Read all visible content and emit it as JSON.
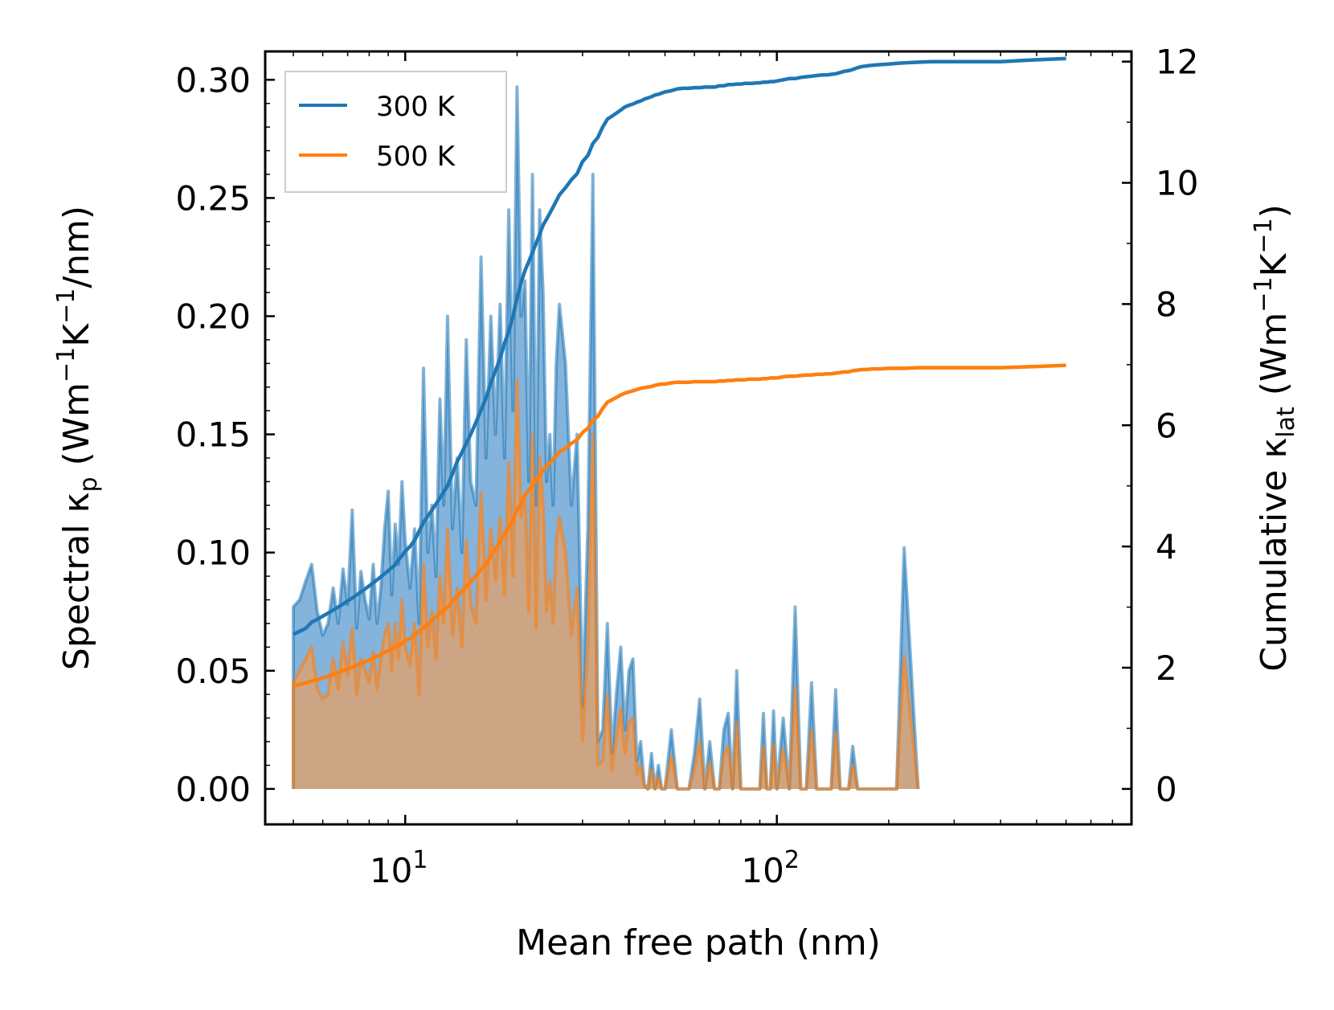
{
  "chart_data": {
    "type": "area",
    "xscale": "log",
    "xlabel": "Mean free path (nm)",
    "ylabel": "Spectral κp (Wm⁻¹K⁻¹/nm)",
    "ylabel_parts": [
      "Spectral κ",
      "p",
      " (Wm",
      "−1",
      "K",
      "−1",
      "/nm)"
    ],
    "ylabel2": "Cumulative κlat (Wm⁻¹K⁻¹)",
    "ylabel2_parts": [
      "Cumulative κ",
      "lat",
      " (Wm",
      "−1",
      "K",
      "−1",
      ")"
    ],
    "xlim": [
      4.2,
      900
    ],
    "ylim": [
      -0.015,
      0.312
    ],
    "y2lim": [
      -0.585,
      12.168
    ],
    "xticks": [
      {
        "value": 10,
        "base": "10",
        "exp": "1"
      },
      {
        "value": 100,
        "base": "10",
        "exp": "2"
      }
    ],
    "yticks": [
      0.0,
      0.05,
      0.1,
      0.15,
      0.2,
      0.25,
      0.3
    ],
    "ytick_labels": [
      "0.00",
      "0.05",
      "0.10",
      "0.15",
      "0.20",
      "0.25",
      "0.30"
    ],
    "y2ticks": [
      0,
      2,
      4,
      6,
      8,
      10,
      12
    ],
    "y2tick_labels": [
      "0",
      "2",
      "4",
      "6",
      "8",
      "10",
      "12"
    ],
    "legend": {
      "position": "upper-left",
      "entries": [
        "300 K",
        "500 K"
      ]
    },
    "colors": {
      "300 K": "#1f77b4",
      "500 K": "#ff7f0e",
      "fill_300": "#6fa6d6",
      "fill_500": "#d4a37a"
    },
    "spectral_x": [
      5.0,
      5.2,
      5.4,
      5.6,
      5.8,
      6.0,
      6.2,
      6.4,
      6.6,
      6.8,
      7.0,
      7.2,
      7.4,
      7.6,
      7.8,
      8.0,
      8.2,
      8.4,
      8.6,
      8.8,
      9.0,
      9.2,
      9.4,
      9.6,
      9.8,
      10.0,
      10.3,
      10.6,
      10.9,
      11.2,
      11.5,
      11.8,
      12.1,
      12.4,
      12.7,
      13.0,
      13.4,
      13.8,
      14.2,
      14.6,
      15.0,
      15.5,
      16.0,
      16.5,
      17.0,
      17.5,
      18.0,
      18.5,
      19.0,
      19.5,
      20.0,
      20.5,
      21.0,
      21.5,
      22.0,
      22.5,
      23.0,
      23.5,
      24.0,
      24.5,
      25.0,
      25.5,
      26.0,
      27.0,
      28.0,
      29.0,
      30.0,
      31.0,
      32.0,
      33.0,
      34.0,
      35.0,
      36.0,
      37.0,
      38.0,
      39.0,
      40.0,
      41.0,
      42.0,
      43.0,
      44.0,
      45.0,
      46.0,
      47.0,
      48.0,
      49.0,
      50.0,
      52.0,
      54.0,
      56.0,
      58.0,
      60.0,
      62.0,
      64.0,
      66.0,
      68.0,
      70.0,
      72.0,
      74.0,
      76.0,
      78.0,
      80.0,
      82.0,
      84.0,
      86.0,
      88.0,
      90.0,
      92.0,
      94.0,
      96.0,
      98.0,
      100.0,
      104.0,
      108.0,
      112.0,
      116.0,
      120.0,
      124.0,
      128.0,
      132.0,
      136.0,
      140.0,
      144.0,
      148.0,
      152.0,
      156.0,
      160.0,
      165.0,
      170.0,
      175.0,
      180.0,
      190.0,
      200.0,
      210.0,
      220.0,
      240.0,
      260.0,
      280.0,
      300.0,
      400.0,
      500.0,
      600.0,
      700.0,
      720.0,
      740.0,
      760.0
    ],
    "series": [
      {
        "name": "300 K",
        "spectral": [
          0.077,
          0.08,
          0.088,
          0.095,
          0.075,
          0.065,
          0.07,
          0.085,
          0.07,
          0.093,
          0.078,
          0.118,
          0.068,
          0.092,
          0.08,
          0.072,
          0.095,
          0.07,
          0.085,
          0.11,
          0.126,
          0.082,
          0.112,
          0.095,
          0.13,
          0.105,
          0.085,
          0.11,
          0.07,
          0.178,
          0.1,
          0.12,
          0.09,
          0.165,
          0.12,
          0.2,
          0.11,
          0.14,
          0.1,
          0.19,
          0.13,
          0.12,
          0.225,
          0.14,
          0.2,
          0.15,
          0.205,
          0.14,
          0.245,
          0.16,
          0.297,
          0.2,
          0.215,
          0.13,
          0.26,
          0.12,
          0.245,
          0.21,
          0.13,
          0.15,
          0.12,
          0.18,
          0.205,
          0.18,
          0.12,
          0.15,
          0.035,
          0.11,
          0.26,
          0.02,
          0.025,
          0.07,
          0.015,
          0.04,
          0.06,
          0.025,
          0.05,
          0.055,
          0.012,
          0.02,
          0.002,
          0.0,
          0.015,
          0.0,
          0.01,
          0.0,
          0.0,
          0.025,
          0.0,
          0.0,
          0.0,
          0.015,
          0.038,
          0.0,
          0.02,
          0.0,
          0.0,
          0.025,
          0.032,
          0.0,
          0.05,
          0.0,
          0.0,
          0.0,
          0.0,
          0.0,
          0.0,
          0.032,
          0.0,
          0.0,
          0.033,
          0.0,
          0.03,
          0.0,
          0.077,
          0.0,
          0.0,
          0.045,
          0.0,
          0.0,
          0.0,
          0.0,
          0.042,
          0.0,
          0.0,
          0.0,
          0.018,
          0.0,
          0.0,
          0.0,
          0.0,
          0.0,
          0.0,
          0.0,
          0.102,
          0.0
        ],
        "cumulative": [
          2.55,
          2.6,
          2.65,
          2.75,
          2.8,
          2.85,
          2.9,
          2.95,
          3.0,
          3.05,
          3.1,
          3.15,
          3.2,
          3.25,
          3.3,
          3.35,
          3.4,
          3.45,
          3.5,
          3.55,
          3.6,
          3.65,
          3.7,
          3.78,
          3.85,
          3.92,
          4.0,
          4.1,
          4.25,
          4.4,
          4.5,
          4.6,
          4.7,
          4.8,
          4.9,
          5.0,
          5.2,
          5.4,
          5.55,
          5.7,
          5.85,
          6.05,
          6.25,
          6.45,
          6.7,
          6.9,
          7.1,
          7.35,
          7.55,
          7.8,
          8.1,
          8.35,
          8.55,
          8.7,
          8.85,
          9.0,
          9.15,
          9.3,
          9.4,
          9.5,
          9.6,
          9.7,
          9.8,
          9.92,
          10.05,
          10.15,
          10.35,
          10.45,
          10.65,
          10.75,
          10.92,
          11.05,
          11.1,
          11.15,
          11.2,
          11.25,
          11.28,
          11.3,
          11.33,
          11.35,
          11.38,
          11.4,
          11.42,
          11.45,
          11.46,
          11.48,
          11.5,
          11.52,
          11.55,
          11.56,
          11.56,
          11.57,
          11.57,
          11.58,
          11.58,
          11.58,
          11.6,
          11.6,
          11.62,
          11.62,
          11.63,
          11.63,
          11.64,
          11.64,
          11.64,
          11.65,
          11.65,
          11.66,
          11.66,
          11.67,
          11.67,
          11.68,
          11.7,
          11.72,
          11.72,
          11.74,
          11.75,
          11.76,
          11.77,
          11.78,
          11.78,
          11.79,
          11.8,
          11.82,
          11.84,
          11.85,
          11.87,
          11.9,
          11.92,
          11.93,
          11.94,
          11.95,
          11.96,
          11.97,
          11.98,
          11.99,
          12.0,
          12.0,
          12.0,
          12.0,
          12.03,
          12.05
        ]
      },
      {
        "name": "500 K",
        "spectral": [
          0.045,
          0.05,
          0.055,
          0.06,
          0.042,
          0.038,
          0.04,
          0.055,
          0.042,
          0.062,
          0.048,
          0.068,
          0.04,
          0.055,
          0.05,
          0.045,
          0.058,
          0.042,
          0.055,
          0.065,
          0.07,
          0.05,
          0.07,
          0.055,
          0.08,
          0.06,
          0.052,
          0.07,
          0.04,
          0.095,
          0.06,
          0.075,
          0.055,
          0.09,
          0.07,
          0.11,
          0.065,
          0.085,
          0.06,
          0.105,
          0.078,
          0.07,
          0.125,
          0.08,
          0.11,
          0.088,
          0.115,
          0.082,
          0.138,
          0.09,
          0.173,
          0.115,
          0.125,
          0.075,
          0.15,
          0.068,
          0.14,
          0.12,
          0.075,
          0.088,
          0.07,
          0.104,
          0.115,
          0.1,
          0.065,
          0.085,
          0.02,
          0.06,
          0.15,
          0.01,
          0.012,
          0.04,
          0.008,
          0.022,
          0.034,
          0.015,
          0.028,
          0.03,
          0.006,
          0.01,
          0.001,
          0.0,
          0.008,
          0.0,
          0.005,
          0.0,
          0.0,
          0.014,
          0.0,
          0.0,
          0.0,
          0.008,
          0.02,
          0.0,
          0.011,
          0.0,
          0.0,
          0.014,
          0.018,
          0.0,
          0.028,
          0.0,
          0.0,
          0.0,
          0.0,
          0.0,
          0.0,
          0.018,
          0.0,
          0.0,
          0.019,
          0.0,
          0.017,
          0.0,
          0.043,
          0.0,
          0.0,
          0.025,
          0.0,
          0.0,
          0.0,
          0.0,
          0.024,
          0.0,
          0.0,
          0.0,
          0.01,
          0.0,
          0.0,
          0.0,
          0.0,
          0.0,
          0.0,
          0.0,
          0.056,
          0.0
        ],
        "cumulative": [
          1.7,
          1.72,
          1.75,
          1.78,
          1.8,
          1.83,
          1.86,
          1.89,
          1.92,
          1.95,
          1.98,
          2.01,
          2.04,
          2.07,
          2.1,
          2.13,
          2.16,
          2.19,
          2.22,
          2.25,
          2.28,
          2.31,
          2.34,
          2.37,
          2.4,
          2.44,
          2.48,
          2.53,
          2.6,
          2.66,
          2.72,
          2.78,
          2.84,
          2.9,
          2.95,
          3.0,
          3.1,
          3.18,
          3.26,
          3.34,
          3.42,
          3.52,
          3.62,
          3.72,
          3.84,
          3.96,
          4.08,
          4.2,
          4.32,
          4.45,
          4.6,
          4.72,
          4.84,
          4.93,
          5.02,
          5.1,
          5.18,
          5.26,
          5.32,
          5.38,
          5.44,
          5.5,
          5.56,
          5.62,
          5.7,
          5.76,
          5.88,
          5.95,
          6.08,
          6.15,
          6.28,
          6.38,
          6.42,
          6.46,
          6.5,
          6.53,
          6.55,
          6.57,
          6.59,
          6.61,
          6.62,
          6.63,
          6.64,
          6.66,
          6.67,
          6.68,
          6.68,
          6.7,
          6.71,
          6.71,
          6.71,
          6.72,
          6.72,
          6.72,
          6.72,
          6.72,
          6.73,
          6.73,
          6.74,
          6.74,
          6.75,
          6.75,
          6.75,
          6.76,
          6.76,
          6.76,
          6.76,
          6.77,
          6.77,
          6.78,
          6.78,
          6.78,
          6.8,
          6.81,
          6.81,
          6.82,
          6.83,
          6.83,
          6.84,
          6.84,
          6.85,
          6.85,
          6.86,
          6.87,
          6.88,
          6.88,
          6.9,
          6.91,
          6.92,
          6.92,
          6.93,
          6.93,
          6.94,
          6.94,
          6.94,
          6.95,
          6.95,
          6.95,
          6.95,
          6.95,
          6.97,
          6.99
        ]
      }
    ]
  }
}
